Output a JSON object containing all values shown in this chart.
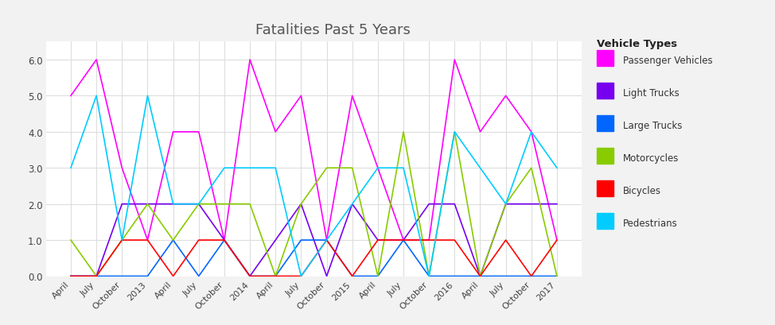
{
  "title": "Fatalities Past 5 Years",
  "legend_title": "Vehicle Types",
  "fig_background": "#f2f2f2",
  "plot_background": "#ffffff",
  "x_labels": [
    "April",
    "July",
    "October",
    "2013",
    "April",
    "July",
    "October",
    "2014",
    "April",
    "July",
    "October",
    "2015",
    "April",
    "July",
    "October",
    "2016",
    "April",
    "July",
    "October",
    "2017"
  ],
  "ylim": [
    0.0,
    6.5
  ],
  "yticks": [
    0.0,
    1.0,
    2.0,
    3.0,
    4.0,
    5.0,
    6.0
  ],
  "series": [
    {
      "label": "Passenger Vehicles",
      "color": "#ff00ff",
      "data": [
        5,
        6,
        3,
        1,
        4,
        4,
        1,
        6,
        4,
        5,
        1,
        5,
        3,
        1,
        1,
        6,
        4,
        5,
        4,
        1
      ]
    },
    {
      "label": "Light Trucks",
      "color": "#7700ee",
      "data": [
        0,
        0,
        2,
        2,
        2,
        2,
        1,
        0,
        1,
        2,
        0,
        2,
        1,
        1,
        2,
        2,
        0,
        2,
        2,
        2
      ]
    },
    {
      "label": "Large Trucks",
      "color": "#0066ff",
      "data": [
        0,
        0,
        0,
        0,
        1,
        0,
        1,
        0,
        0,
        1,
        1,
        0,
        0,
        1,
        0,
        0,
        0,
        0,
        0,
        0
      ]
    },
    {
      "label": "Motorcycles",
      "color": "#88cc00",
      "data": [
        1,
        0,
        1,
        2,
        1,
        2,
        2,
        2,
        0,
        2,
        3,
        3,
        0,
        4,
        0,
        4,
        0,
        2,
        3,
        0
      ]
    },
    {
      "label": "Bicycles",
      "color": "#ff0000",
      "data": [
        0,
        0,
        1,
        1,
        0,
        1,
        1,
        0,
        0,
        0,
        1,
        0,
        1,
        1,
        1,
        1,
        0,
        1,
        0,
        1
      ]
    },
    {
      "label": "Pedestrians",
      "color": "#00ccff",
      "data": [
        3,
        5,
        1,
        5,
        2,
        2,
        3,
        3,
        3,
        0,
        1,
        2,
        3,
        3,
        0,
        4,
        3,
        2,
        4,
        3
      ]
    }
  ]
}
